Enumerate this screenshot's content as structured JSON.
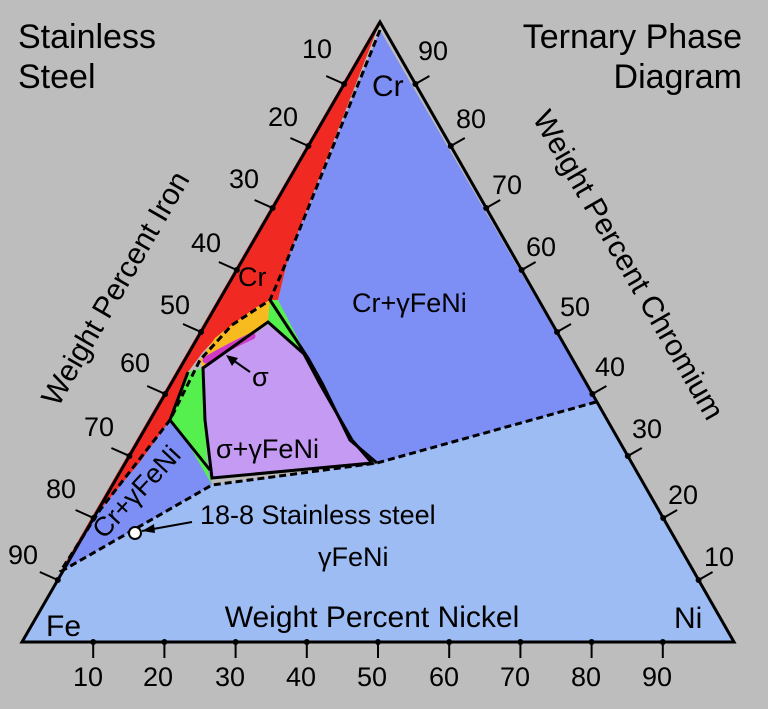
{
  "titles": {
    "left_line1": "Stainless",
    "left_line2": "Steel",
    "right_line1": "Ternary Phase",
    "right_line2": "Diagram"
  },
  "axes": {
    "iron": "Weight Percent Iron",
    "chromium": "Weight Percent Chromium",
    "nickel": "Weight Percent Nickel"
  },
  "corners": {
    "fe": "Fe",
    "ni": "Ni",
    "cr": "Cr"
  },
  "ticks": {
    "iron": [
      "10",
      "20",
      "30",
      "40",
      "50",
      "60",
      "70",
      "80",
      "90"
    ],
    "chromium": [
      "90",
      "80",
      "70",
      "60",
      "50",
      "40",
      "30",
      "20",
      "10"
    ],
    "nickel": [
      "10",
      "20",
      "30",
      "40",
      "50",
      "60",
      "70",
      "80",
      "90"
    ]
  },
  "regions": {
    "cr_top": "Cr",
    "cr_gamma": "Cr+γFeNi",
    "sigma": "σ",
    "sigma_gamma": "σ+γFeNi",
    "cr_gamma_left": "Cr+γFeNi",
    "gamma": "γFeNi"
  },
  "annotation": {
    "point_label": "18-8 Stainless steel"
  },
  "colors": {
    "background": "#bdbdbd",
    "gamma": "#9dbcf4",
    "cr_gamma": "#7d8ff5",
    "cr": "#f02a23",
    "sigma_gamma": "#c59af2",
    "sigma": "#ce39c8",
    "green": "#55f04d",
    "orange": "#f7bb1f"
  }
}
